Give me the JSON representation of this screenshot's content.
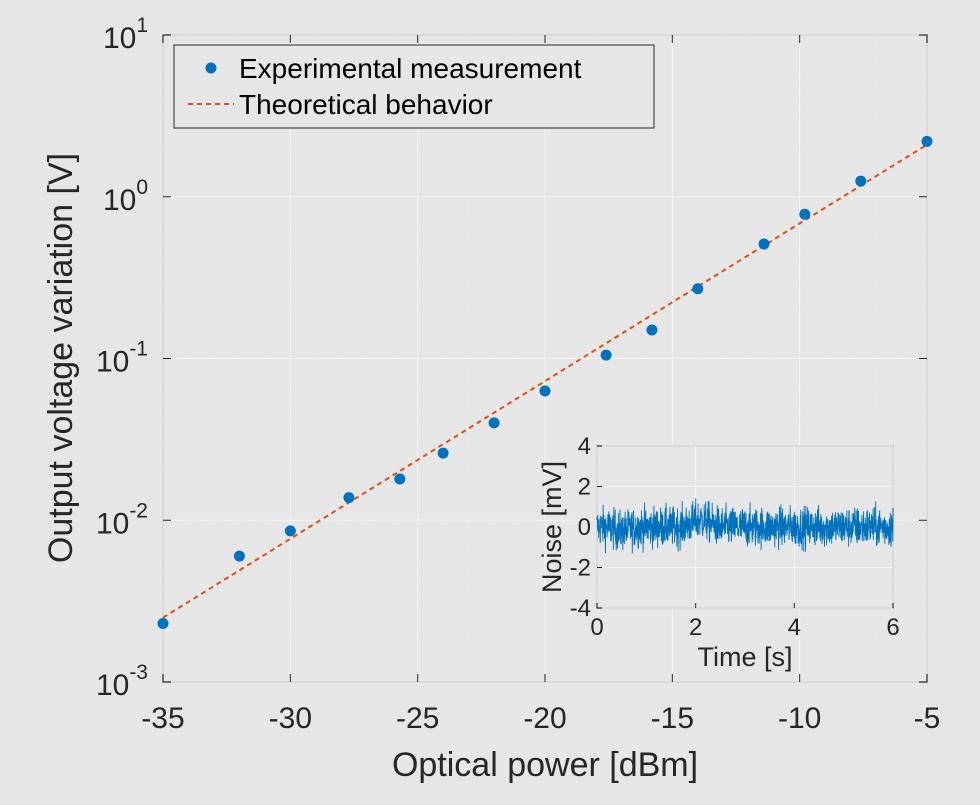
{
  "chart_data": [
    {
      "type": "scatter",
      "xlabel": "Optical power [dBm]",
      "ylabel": "Output voltage variation [V]",
      "xlim": [
        -35,
        -5
      ],
      "ylim": [
        0.001,
        10
      ],
      "yscale": "log",
      "xticks": [
        -35,
        -30,
        -25,
        -20,
        -15,
        -10,
        -5
      ],
      "xtick_labels": [
        "-35",
        "-30",
        "-25",
        "-20",
        "-15",
        "-10",
        "-5"
      ],
      "yticks": [
        {
          "value": 0.001,
          "base": "10",
          "exp": "-3"
        },
        {
          "value": 0.01,
          "base": "10",
          "exp": "-2"
        },
        {
          "value": 0.1,
          "base": "10",
          "exp": "-1"
        },
        {
          "value": 1,
          "base": "10",
          "exp": "0"
        },
        {
          "value": 10,
          "base": "10",
          "exp": "1"
        }
      ],
      "grid": true,
      "legend_position": "top-left",
      "series": [
        {
          "name": "Experimental measurement",
          "style": "markers",
          "color": "#0072bd",
          "x": [
            -35,
            -32,
            -30,
            -27.7,
            -25.7,
            -24,
            -22,
            -20,
            -17.6,
            -15.8,
            -14,
            -11.4,
            -9.8,
            -7.6,
            -5
          ],
          "y": [
            0.0023,
            0.006,
            0.0086,
            0.0138,
            0.018,
            0.026,
            0.04,
            0.063,
            0.105,
            0.15,
            0.27,
            0.51,
            0.78,
            1.25,
            2.2
          ]
        },
        {
          "name": "Theoretical behavior",
          "style": "dashed-line",
          "color": "#d95319",
          "x": [
            -35,
            -5
          ],
          "y": [
            0.0025,
            2.1
          ]
        }
      ]
    },
    {
      "type": "line",
      "xlabel": "Time  [s]",
      "ylabel": "Noise [mV]",
      "xlim": [
        0,
        6
      ],
      "ylim": [
        -4,
        4
      ],
      "xticks": [
        0,
        2,
        4,
        6
      ],
      "xtick_labels": [
        "0",
        "2",
        "4",
        "6"
      ],
      "yticks": [
        -4,
        -2,
        0,
        2,
        4
      ],
      "ytick_labels": [
        "-4",
        "-2",
        "0",
        "2",
        "4"
      ],
      "grid": true,
      "series": [
        {
          "style": "line",
          "color": "#0072bd",
          "x_range": [
            0,
            6
          ],
          "noise_rms": 0.7,
          "noise_peak": 2.4
        }
      ]
    }
  ]
}
